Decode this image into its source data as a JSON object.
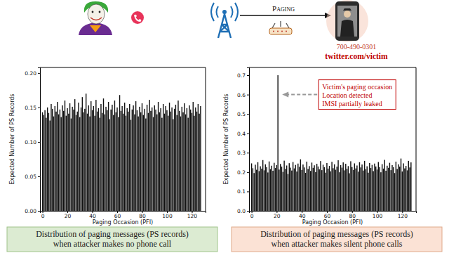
{
  "header": {
    "paging_label": "Paging",
    "phone_number": "700-490-0301",
    "handle": "twitter.com/victim"
  },
  "chart_data": [
    {
      "type": "bar",
      "title": [
        "Distribution of paging messages (PS records)",
        "when attacker makes no phone call"
      ],
      "x_label": "Paging Occasion (PFI)",
      "y_label": "Expected Number of PS Records",
      "color": "#111111",
      "x": [
        0,
        1,
        2,
        3,
        4,
        5,
        6,
        7,
        8,
        9,
        10,
        11,
        12,
        13,
        14,
        15,
        16,
        17,
        18,
        19,
        20,
        21,
        22,
        23,
        24,
        25,
        26,
        27,
        28,
        29,
        30,
        31,
        32,
        33,
        34,
        35,
        36,
        37,
        38,
        39,
        40,
        41,
        42,
        43,
        44,
        45,
        46,
        47,
        48,
        49,
        50,
        51,
        52,
        53,
        54,
        55,
        56,
        57,
        58,
        59,
        60,
        61,
        62,
        63,
        64,
        65,
        66,
        67,
        68,
        69,
        70,
        71,
        72,
        73,
        74,
        75,
        76,
        77,
        78,
        79,
        80,
        81,
        82,
        83,
        84,
        85,
        86,
        87,
        88,
        89,
        90,
        91,
        92,
        93,
        94,
        95,
        96,
        97,
        98,
        99,
        100,
        101,
        102,
        103,
        104,
        105,
        106,
        107,
        108,
        109,
        110,
        111,
        112,
        113,
        114,
        115,
        116,
        117,
        118,
        119,
        120,
        121,
        122,
        123,
        124,
        125,
        126,
        127
      ],
      "values": [
        0.143,
        0.139,
        0.146,
        0.135,
        0.15,
        0.142,
        0.131,
        0.155,
        0.148,
        0.137,
        0.152,
        0.144,
        0.158,
        0.14,
        0.147,
        0.136,
        0.153,
        0.145,
        0.16,
        0.138,
        0.149,
        0.141,
        0.156,
        0.134,
        0.151,
        0.147,
        0.162,
        0.139,
        0.144,
        0.157,
        0.136,
        0.15,
        0.165,
        0.143,
        0.148,
        0.17,
        0.141,
        0.153,
        0.137,
        0.159,
        0.146,
        0.152,
        0.138,
        0.161,
        0.144,
        0.149,
        0.135,
        0.155,
        0.142,
        0.163,
        0.14,
        0.151,
        0.146,
        0.158,
        0.133,
        0.147,
        0.154,
        0.139,
        0.16,
        0.143,
        0.15,
        0.136,
        0.168,
        0.145,
        0.152,
        0.141,
        0.157,
        0.138,
        0.149,
        0.144,
        0.155,
        0.132,
        0.147,
        0.153,
        0.14,
        0.159,
        0.146,
        0.137,
        0.151,
        0.143,
        0.156,
        0.139,
        0.148,
        0.134,
        0.154,
        0.142,
        0.161,
        0.145,
        0.15,
        0.136,
        0.153,
        0.147,
        0.14,
        0.158,
        0.143,
        0.149,
        0.135,
        0.155,
        0.141,
        0.152,
        0.146,
        0.138,
        0.157,
        0.144,
        0.15,
        0.133,
        0.148,
        0.154,
        0.139,
        0.16,
        0.145,
        0.137,
        0.151,
        0.143,
        0.156,
        0.14,
        0.149,
        0.135,
        0.153,
        0.147,
        0.142,
        0.158,
        0.138,
        0.15,
        0.144,
        0.155,
        0.141,
        0.152
      ],
      "xlim": [
        -2,
        131
      ],
      "xticks": [
        0,
        20,
        40,
        60,
        80,
        100,
        120
      ],
      "ylim": [
        0,
        0.208
      ],
      "yticks": [
        {
          "value": 0,
          "label": "0.00"
        },
        {
          "value": 0.05,
          "label": "0.05"
        },
        {
          "value": 0.1,
          "label": "0.10"
        },
        {
          "value": 0.15,
          "label": "0.15"
        },
        {
          "value": 0.2,
          "label": "0.20"
        }
      ]
    },
    {
      "type": "bar",
      "title": [
        "Distribution of paging messages (PS records)",
        "when attacker makes silent phone calls"
      ],
      "x_label": "Paging Occasion (PFI)",
      "y_label": "Expected Number of PS Records",
      "color": "#111111",
      "x": [
        0,
        1,
        2,
        3,
        4,
        5,
        6,
        7,
        8,
        9,
        10,
        11,
        12,
        13,
        14,
        15,
        16,
        17,
        18,
        19,
        20,
        21,
        22,
        23,
        24,
        25,
        26,
        27,
        28,
        29,
        30,
        31,
        32,
        33,
        34,
        35,
        36,
        37,
        38,
        39,
        40,
        41,
        42,
        43,
        44,
        45,
        46,
        47,
        48,
        49,
        50,
        51,
        52,
        53,
        54,
        55,
        56,
        57,
        58,
        59,
        60,
        61,
        62,
        63,
        64,
        65,
        66,
        67,
        68,
        69,
        70,
        71,
        72,
        73,
        74,
        75,
        76,
        77,
        78,
        79,
        80,
        81,
        82,
        83,
        84,
        85,
        86,
        87,
        88,
        89,
        90,
        91,
        92,
        93,
        94,
        95,
        96,
        97,
        98,
        99,
        100,
        101,
        102,
        103,
        104,
        105,
        106,
        107,
        108,
        109,
        110,
        111,
        112,
        113,
        114,
        115,
        116,
        117,
        118,
        119,
        120,
        121,
        122,
        123,
        124,
        125,
        126,
        127
      ],
      "values": [
        0.245,
        0.22,
        0.195,
        0.238,
        0.212,
        0.251,
        0.205,
        0.23,
        0.218,
        0.262,
        0.209,
        0.24,
        0.226,
        0.198,
        0.255,
        0.215,
        0.233,
        0.207,
        0.248,
        0.221,
        0.236,
        0.7,
        0.213,
        0.242,
        0.228,
        0.201,
        0.259,
        0.217,
        0.234,
        0.19,
        0.246,
        0.223,
        0.208,
        0.252,
        0.219,
        0.237,
        0.203,
        0.244,
        0.227,
        0.266,
        0.211,
        0.239,
        0.224,
        0.196,
        0.254,
        0.216,
        0.231,
        0.206,
        0.249,
        0.222,
        0.235,
        0.2,
        0.243,
        0.229,
        0.214,
        0.257,
        0.21,
        0.238,
        0.225,
        0.197,
        0.247,
        0.218,
        0.232,
        0.204,
        0.253,
        0.22,
        0.24,
        0.212,
        0.228,
        0.261,
        0.199,
        0.236,
        0.223,
        0.25,
        0.209,
        0.243,
        0.217,
        0.231,
        0.194,
        0.256,
        0.226,
        0.211,
        0.245,
        0.219,
        0.234,
        0.202,
        0.251,
        0.224,
        0.239,
        0.208,
        0.258,
        0.215,
        0.23,
        0.197,
        0.247,
        0.221,
        0.237,
        0.205,
        0.244,
        0.229,
        0.213,
        0.252,
        0.226,
        0.199,
        0.241,
        0.218,
        0.263,
        0.207,
        0.233,
        0.222,
        0.248,
        0.21,
        0.236,
        0.225,
        0.195,
        0.254,
        0.216,
        0.24,
        0.228,
        0.27,
        0.203,
        0.245,
        0.219,
        0.232,
        0.209,
        0.258,
        0.224,
        0.25
      ],
      "xlim": [
        -2,
        131
      ],
      "xticks": [
        0,
        20,
        40,
        60,
        80,
        100,
        120
      ],
      "ylim": [
        0,
        0.74
      ],
      "yticks": [
        {
          "value": 0,
          "label": "0.0"
        },
        {
          "value": 0.1,
          "label": "0.1"
        },
        {
          "value": 0.2,
          "label": "0.2"
        },
        {
          "value": 0.3,
          "label": "0.3"
        },
        {
          "value": 0.4,
          "label": "0.4"
        },
        {
          "value": 0.5,
          "label": "0.5"
        },
        {
          "value": 0.6,
          "label": "0.6"
        },
        {
          "value": 0.7,
          "label": "0.7"
        }
      ],
      "annotations": [
        {
          "text": [
            "Victim's paging occasion",
            "Location detected",
            "IMSI partially leaked"
          ],
          "x": 21,
          "y": 0.6
        }
      ]
    }
  ]
}
